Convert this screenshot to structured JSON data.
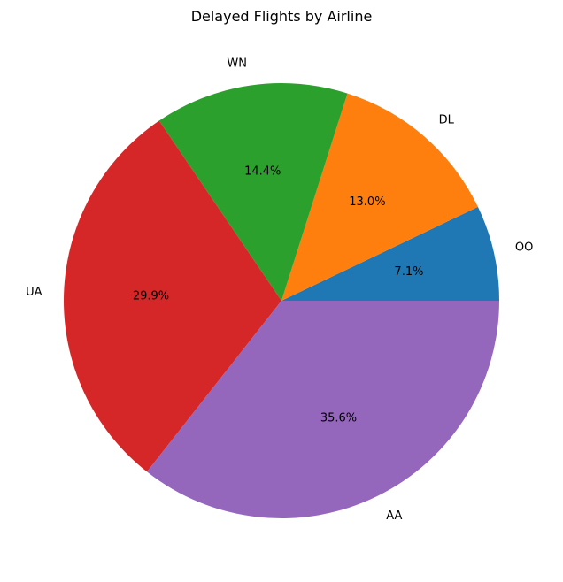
{
  "chart_data": {
    "type": "pie",
    "title": "Delayed Flights by Airline",
    "labels": [
      "OO",
      "DL",
      "WN",
      "UA",
      "AA"
    ],
    "values": [
      7.1,
      13.0,
      14.4,
      29.9,
      35.6
    ],
    "percent_labels": [
      "7.1%",
      "13.0%",
      "14.4%",
      "29.9%",
      "35.6%"
    ],
    "colors": [
      "#1f77b4",
      "#ff7f0e",
      "#2ca02c",
      "#d62728",
      "#9467bd"
    ],
    "start_angle_deg": 0,
    "direction": "counterclockwise",
    "legend": "none"
  }
}
